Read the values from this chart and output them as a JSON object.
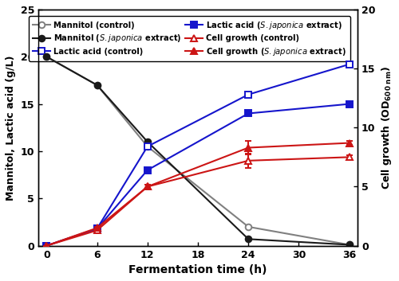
{
  "time": [
    0,
    6,
    12,
    24,
    36
  ],
  "mannitol_control": [
    20.0,
    17.0,
    10.5,
    2.0,
    0.1
  ],
  "mannitol_sj": [
    20.0,
    17.0,
    11.0,
    0.7,
    0.1
  ],
  "lactic_control": [
    0.0,
    1.8,
    10.5,
    16.0,
    19.2
  ],
  "lactic_sj": [
    0.0,
    1.8,
    8.0,
    14.0,
    15.0
  ],
  "cell_control": [
    0.0,
    1.3,
    5.0,
    7.2,
    7.5
  ],
  "cell_sj": [
    0.0,
    1.5,
    5.0,
    8.3,
    8.7
  ],
  "cell_control_err": [
    0.0,
    0.1,
    0.15,
    0.6,
    0.15
  ],
  "cell_sj_err": [
    0.0,
    0.1,
    0.15,
    0.6,
    0.15
  ],
  "lactic_control_err": [
    0.0,
    0.08,
    0.1,
    0.2,
    0.15
  ],
  "lactic_sj_err": [
    0.0,
    0.08,
    0.1,
    0.2,
    0.15
  ],
  "mannitol_control_err": [
    0.1,
    0.1,
    0.15,
    0.08,
    0.05
  ],
  "mannitol_sj_err": [
    0.1,
    0.1,
    0.15,
    0.05,
    0.05
  ],
  "left_ylim": [
    0,
    25
  ],
  "right_ylim": [
    0,
    20
  ],
  "left_yticks": [
    0,
    5,
    10,
    15,
    20,
    25
  ],
  "right_yticks": [
    0,
    5,
    10,
    15,
    20
  ],
  "xticks": [
    0,
    6,
    12,
    18,
    24,
    30,
    36
  ],
  "xlabel": "Fermentation time (h)",
  "ylabel_left": "Mannitol, Lactic acid (g/L)",
  "ylabel_right": "Cell growth (OD",
  "ylabel_right_sub": "600 nm",
  "ylabel_right_end": ")",
  "color_black": "#1a1a1a",
  "color_blue": "#1515cc",
  "color_red": "#cc1515",
  "legend_items_col1": [
    "Mannitol (control)",
    "Lactic acid (control)",
    "Cell growth (control)"
  ],
  "legend_items_col2": [
    "Mannitol (S. japonica extract)",
    "Lactic acid (S. japonica extract)",
    "Cell growth (S. japonica extract)"
  ]
}
